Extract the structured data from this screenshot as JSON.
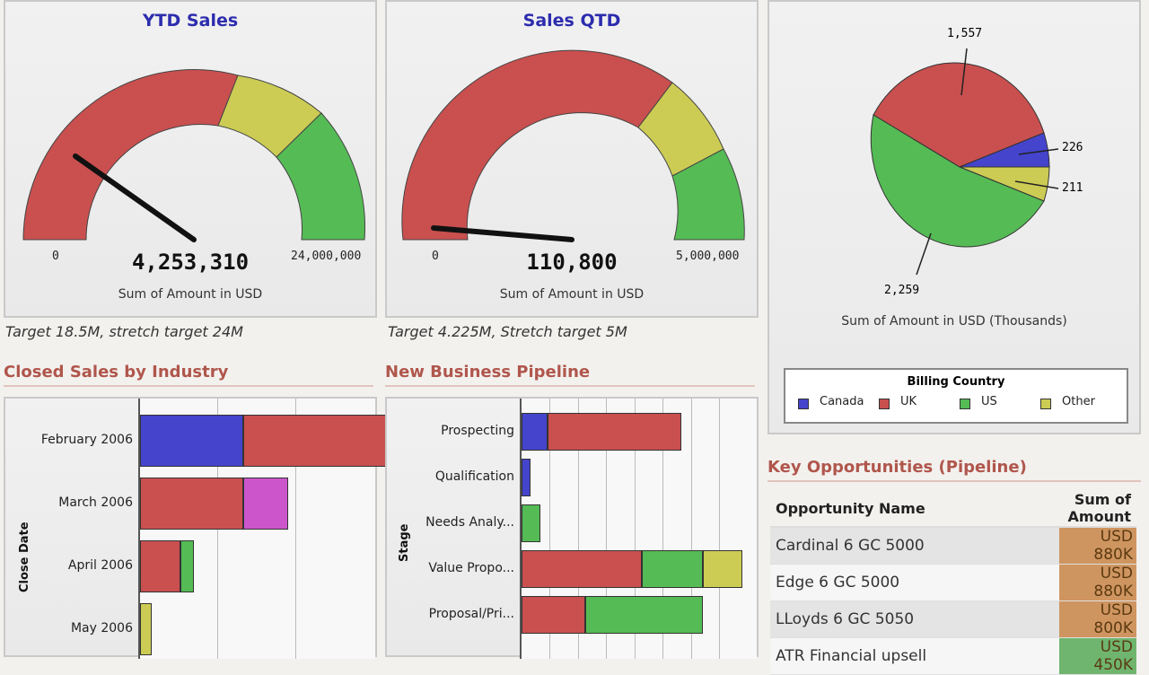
{
  "gauges": [
    {
      "title": "YTD Sales",
      "value": "4,253,310",
      "min": "0",
      "max": "24,000,000",
      "subtitle": "Sum of Amount in USD",
      "note": "Target 18.5M, stretch target 24M",
      "raw_value": 4253310,
      "raw_max": 24000000
    },
    {
      "title": "Sales QTD",
      "value": "110,800",
      "min": "0",
      "max": "5,000,000",
      "subtitle": "Sum of Amount in USD",
      "note": "Target 4.225M, Stretch target 5M",
      "raw_value": 110800,
      "raw_max": 5000000
    }
  ],
  "pie": {
    "labels": [
      "1,557",
      "226",
      "211",
      "2,259"
    ],
    "subtitle": "Sum of Amount in USD (Thousands)",
    "legend_title": "Billing Country",
    "legend": [
      {
        "name": "Canada",
        "color": "#4444cc"
      },
      {
        "name": "UK",
        "color": "#c9504f"
      },
      {
        "name": "US",
        "color": "#55bb55"
      },
      {
        "name": "Other",
        "color": "#cccc55"
      }
    ]
  },
  "closed_sales": {
    "title": "Closed Sales by Industry",
    "axis_label": "Close Date",
    "rows": [
      {
        "label": "February 2006",
        "segments": [
          {
            "color": "#4444cc",
            "value": 0.44
          },
          {
            "color": "#c9504f",
            "value": 0.69
          }
        ]
      },
      {
        "label": "March 2006",
        "segments": [
          {
            "color": "#c9504f",
            "value": 0.44
          },
          {
            "color": "#cc55cc",
            "value": 0.19
          }
        ]
      },
      {
        "label": "April 2006",
        "segments": [
          {
            "color": "#c9504f",
            "value": 0.17
          },
          {
            "color": "#55bb55",
            "value": 0.06
          }
        ]
      },
      {
        "label": "May 2006",
        "segments": [
          {
            "color": "#cccc55",
            "value": 0.05
          }
        ]
      }
    ]
  },
  "pipeline": {
    "title": "New Business Pipeline",
    "axis_label": "Stage",
    "rows": [
      {
        "label": "Prospecting",
        "segments": [
          {
            "color": "#4444cc",
            "value": 0.11
          },
          {
            "color": "#c9504f",
            "value": 0.57
          }
        ]
      },
      {
        "label": "Qualification",
        "segments": [
          {
            "color": "#4444cc",
            "value": 0.04
          }
        ]
      },
      {
        "label": "Needs Analy...",
        "segments": [
          {
            "color": "#55bb55",
            "value": 0.08
          }
        ]
      },
      {
        "label": "Value Propo...",
        "segments": [
          {
            "color": "#c9504f",
            "value": 0.51
          },
          {
            "color": "#55bb55",
            "value": 0.26
          },
          {
            "color": "#cccc55",
            "value": 0.17
          }
        ]
      },
      {
        "label": "Proposal/Pri...",
        "segments": [
          {
            "color": "#c9504f",
            "value": 0.27
          },
          {
            "color": "#55bb55",
            "value": 0.5
          }
        ]
      }
    ]
  },
  "opportunities": {
    "title": "Key Opportunities (Pipeline)",
    "col_name": "Opportunity Name",
    "col_amount": "Sum of Amount",
    "rows": [
      {
        "name": "Cardinal 6 GC 5000",
        "amount": "USD 880K",
        "color": "#cf9560"
      },
      {
        "name": "Edge 6 GC 5000",
        "amount": "USD 880K",
        "color": "#cf9560"
      },
      {
        "name": "LLoyds 6 GC 5050",
        "amount": "USD 800K",
        "color": "#cf9560"
      },
      {
        "name": "ATR Financial upsell",
        "amount": "USD 450K",
        "color": "#6fb56f"
      }
    ]
  }
}
